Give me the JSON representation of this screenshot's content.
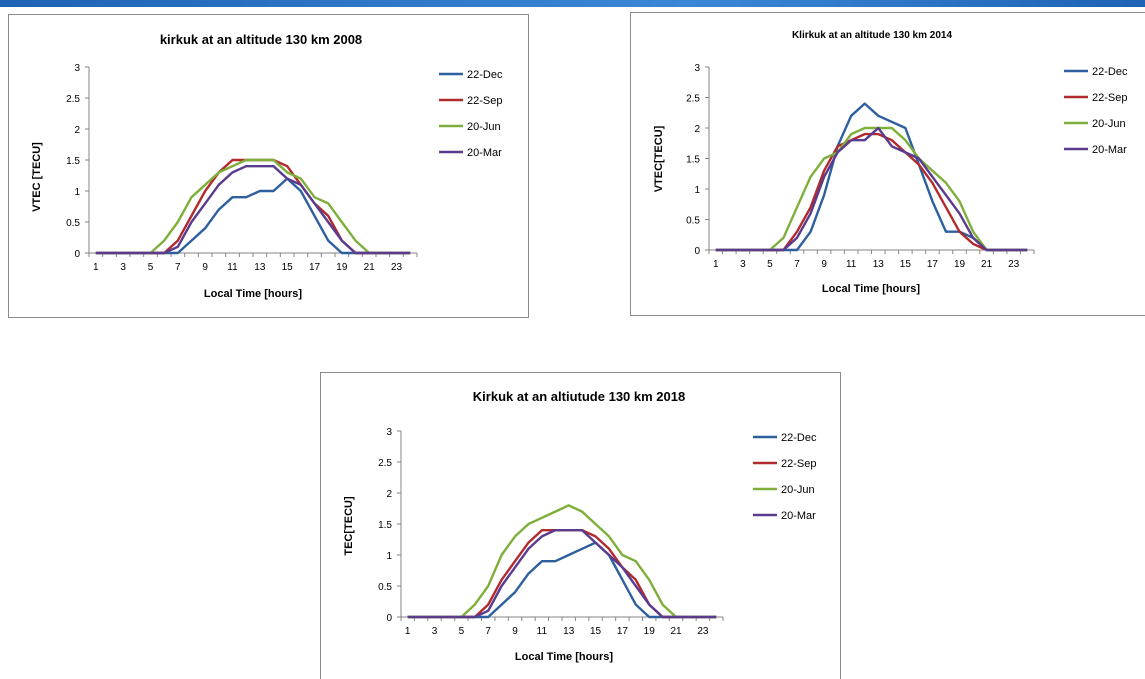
{
  "colors": {
    "22-Dec": "#2e5f9e",
    "22-Sep": "#b02a2e",
    "20-Jun": "#7faf3a",
    "20-Mar": "#5a3b8e",
    "page_accent": "#1e63b5"
  },
  "chart_data": [
    {
      "type": "line",
      "title": "kirkuk at an altitude 130 km 2008",
      "xlabel": "Local Time [hours]",
      "ylabel": "VTEC [TECU]",
      "x": [
        1,
        2,
        3,
        4,
        5,
        6,
        7,
        8,
        9,
        10,
        11,
        12,
        13,
        14,
        15,
        16,
        17,
        18,
        19,
        20,
        21,
        22,
        23,
        24
      ],
      "x_tick_labels": [
        "1",
        "3",
        "5",
        "7",
        "9",
        "11",
        "13",
        "15",
        "17",
        "19",
        "21",
        "23"
      ],
      "y_tick_labels": [
        "0",
        "0.5",
        "1",
        "1.5",
        "2",
        "2.5",
        "3"
      ],
      "ylim": [
        0,
        3
      ],
      "grid": false,
      "legend_position": "right",
      "series": [
        {
          "name": "22-Dec",
          "values": [
            0,
            0,
            0,
            0,
            0,
            0,
            0,
            0.2,
            0.4,
            0.7,
            0.9,
            0.9,
            1.0,
            1.0,
            1.2,
            1.0,
            0.6,
            0.2,
            0,
            0,
            0,
            0,
            0,
            0
          ]
        },
        {
          "name": "22-Sep",
          "values": [
            0,
            0,
            0,
            0,
            0,
            0,
            0.2,
            0.6,
            1.0,
            1.3,
            1.5,
            1.5,
            1.5,
            1.5,
            1.4,
            1.1,
            0.8,
            0.6,
            0.2,
            0,
            0,
            0,
            0,
            0
          ]
        },
        {
          "name": "20-Jun",
          "values": [
            0,
            0,
            0,
            0,
            0,
            0.2,
            0.5,
            0.9,
            1.1,
            1.3,
            1.4,
            1.5,
            1.5,
            1.5,
            1.3,
            1.2,
            0.9,
            0.8,
            0.5,
            0.2,
            0,
            0,
            0,
            0
          ]
        },
        {
          "name": "20-Mar",
          "values": [
            0,
            0,
            0,
            0,
            0,
            0,
            0.1,
            0.5,
            0.8,
            1.1,
            1.3,
            1.4,
            1.4,
            1.4,
            1.2,
            1.1,
            0.8,
            0.5,
            0.2,
            0,
            0,
            0,
            0,
            0
          ]
        }
      ]
    },
    {
      "type": "line",
      "title": "Klirkuk at an altitude 130 km 2014",
      "xlabel": "Local Time [hours]",
      "ylabel": "VTEC[TECU]",
      "x": [
        1,
        2,
        3,
        4,
        5,
        6,
        7,
        8,
        9,
        10,
        11,
        12,
        13,
        14,
        15,
        16,
        17,
        18,
        19,
        20,
        21,
        22,
        23,
        24
      ],
      "x_tick_labels": [
        "1",
        "3",
        "5",
        "7",
        "9",
        "11",
        "13",
        "15",
        "17",
        "19",
        "21",
        "23"
      ],
      "y_tick_labels": [
        "0",
        "0.5",
        "1",
        "1.5",
        "2",
        "2.5",
        "3"
      ],
      "ylim": [
        0,
        3
      ],
      "grid": false,
      "legend_position": "right",
      "series": [
        {
          "name": "22-Dec",
          "values": [
            0,
            0,
            0,
            0,
            0,
            0,
            0,
            0.3,
            0.9,
            1.7,
            2.2,
            2.4,
            2.2,
            2.1,
            2.0,
            1.4,
            0.8,
            0.3,
            0.3,
            0.2,
            0,
            0,
            0,
            0
          ]
        },
        {
          "name": "22-Sep",
          "values": [
            0,
            0,
            0,
            0,
            0,
            0,
            0.3,
            0.7,
            1.3,
            1.7,
            1.8,
            1.9,
            1.9,
            1.8,
            1.6,
            1.4,
            1.1,
            0.7,
            0.3,
            0.1,
            0,
            0,
            0,
            0
          ]
        },
        {
          "name": "20-Jun",
          "values": [
            0,
            0,
            0,
            0,
            0,
            0.2,
            0.7,
            1.2,
            1.5,
            1.6,
            1.9,
            2.0,
            2.0,
            2.0,
            1.8,
            1.5,
            1.3,
            1.1,
            0.8,
            0.3,
            0,
            0,
            0,
            0
          ]
        },
        {
          "name": "20-Mar",
          "values": [
            0,
            0,
            0,
            0,
            0,
            0,
            0.2,
            0.6,
            1.2,
            1.6,
            1.8,
            1.8,
            2.0,
            1.7,
            1.6,
            1.5,
            1.2,
            0.9,
            0.6,
            0.2,
            0,
            0,
            0,
            0
          ]
        }
      ]
    },
    {
      "type": "line",
      "title": "Kirkuk at an altiutude 130 km 2018",
      "xlabel": "Local Time [hours]",
      "ylabel": "TEC[TECU]",
      "x": [
        1,
        2,
        3,
        4,
        5,
        6,
        7,
        8,
        9,
        10,
        11,
        12,
        13,
        14,
        15,
        16,
        17,
        18,
        19,
        20,
        21,
        22,
        23,
        24
      ],
      "x_tick_labels": [
        "1",
        "3",
        "5",
        "7",
        "9",
        "11",
        "13",
        "15",
        "17",
        "19",
        "21",
        "23"
      ],
      "y_tick_labels": [
        "0",
        "0.5",
        "1",
        "1.5",
        "2",
        "2.5",
        "3"
      ],
      "ylim": [
        0,
        3
      ],
      "grid": false,
      "legend_position": "right",
      "series": [
        {
          "name": "22-Dec",
          "values": [
            0,
            0,
            0,
            0,
            0,
            0,
            0,
            0.2,
            0.4,
            0.7,
            0.9,
            0.9,
            1.0,
            1.1,
            1.2,
            1.0,
            0.6,
            0.2,
            0,
            0,
            0,
            0,
            0,
            0
          ]
        },
        {
          "name": "22-Sep",
          "values": [
            0,
            0,
            0,
            0,
            0,
            0,
            0.2,
            0.6,
            0.9,
            1.2,
            1.4,
            1.4,
            1.4,
            1.4,
            1.3,
            1.1,
            0.8,
            0.6,
            0.2,
            0,
            0,
            0,
            0,
            0
          ]
        },
        {
          "name": "20-Jun",
          "values": [
            0,
            0,
            0,
            0,
            0,
            0.2,
            0.5,
            1.0,
            1.3,
            1.5,
            1.6,
            1.7,
            1.8,
            1.7,
            1.5,
            1.3,
            1.0,
            0.9,
            0.6,
            0.2,
            0,
            0,
            0,
            0
          ]
        },
        {
          "name": "20-Mar",
          "values": [
            0,
            0,
            0,
            0,
            0,
            0,
            0.1,
            0.5,
            0.8,
            1.1,
            1.3,
            1.4,
            1.4,
            1.4,
            1.2,
            1.0,
            0.8,
            0.5,
            0.2,
            0,
            0,
            0,
            0,
            0
          ]
        }
      ]
    }
  ]
}
